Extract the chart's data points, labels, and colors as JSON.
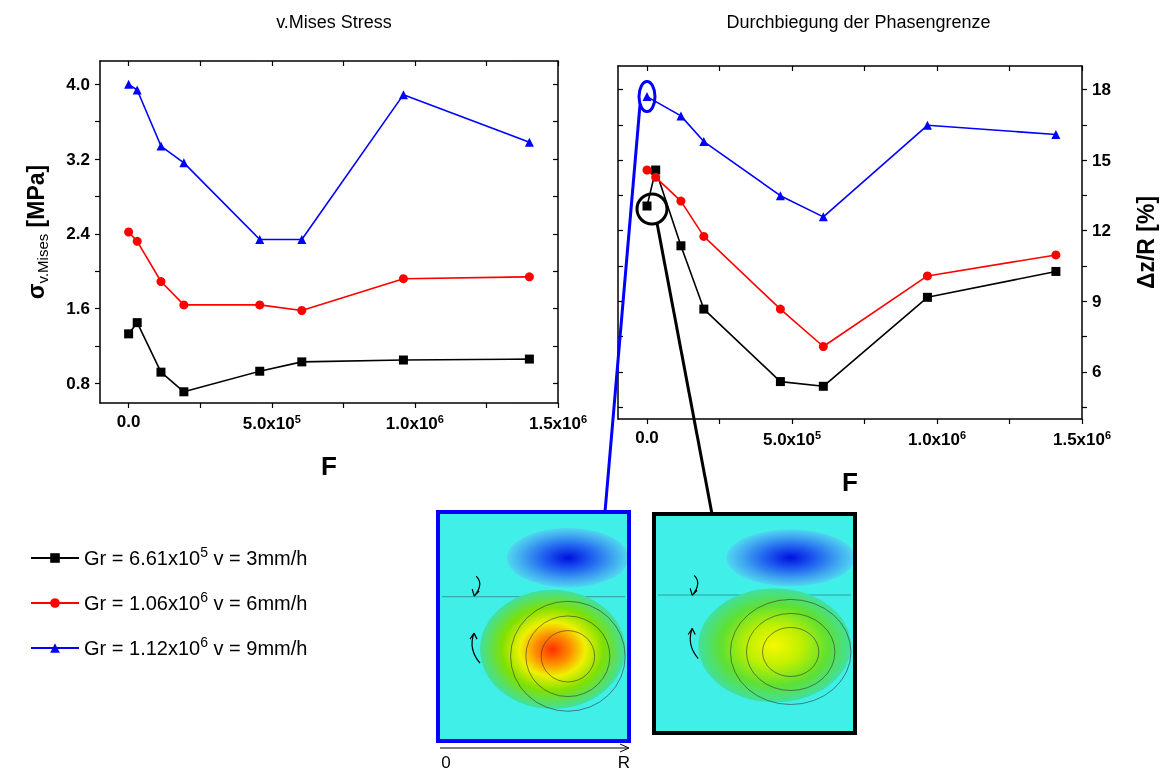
{
  "chart_data": [
    {
      "type": "line",
      "title": "v.Mises Stress",
      "xlabel": "F",
      "ylabel": "σ$_{v.Mises}$ [MPa]",
      "x": [
        0,
        30000,
        113000,
        193000,
        458000,
        605000,
        960000,
        1400000
      ],
      "series": [
        {
          "name": "Gr = 6.61x10$^{5}$ v = 3mm/h",
          "color": "#000000",
          "marker": "square",
          "values": [
            1.33,
            1.45,
            0.92,
            0.71,
            0.93,
            1.03,
            1.05,
            1.06
          ]
        },
        {
          "name": "Gr = 1.06x10$^{6}$ v = 6mm/h",
          "color": "#ff0000",
          "marker": "circle",
          "values": [
            2.42,
            2.32,
            1.89,
            1.64,
            1.64,
            1.58,
            1.92,
            1.94
          ]
        },
        {
          "name": "Gr = 1.12x10$^{6}$ v = 9mm/h",
          "color": "#0000ff",
          "marker": "triangle",
          "values": [
            4.0,
            3.94,
            3.34,
            3.16,
            2.34,
            2.34,
            3.89,
            3.38
          ]
        }
      ],
      "xlim": [
        -100000,
        1500000
      ],
      "xticks": [
        {
          "value": 0,
          "label": "0.0"
        },
        {
          "value": 250000,
          "label": null
        },
        {
          "value": 500000,
          "label": "5.0x10$^{5}$"
        },
        {
          "value": 750000,
          "label": null
        },
        {
          "value": 1000000,
          "label": "1.0x10$^{6}$"
        },
        {
          "value": 1250000,
          "label": null
        },
        {
          "value": 1500000,
          "label": "1.5x10$^{6}$"
        }
      ],
      "ylim": [
        0.59,
        4.25
      ],
      "yticks": [
        {
          "value": 0.8,
          "label": "0.8"
        },
        {
          "value": 1.2,
          "label": null
        },
        {
          "value": 1.6,
          "label": "1.6"
        },
        {
          "value": 2.0,
          "label": null
        },
        {
          "value": 2.4,
          "label": "2.4"
        },
        {
          "value": 2.8,
          "label": null
        },
        {
          "value": 3.2,
          "label": "3.2"
        },
        {
          "value": 3.6,
          "label": null
        },
        {
          "value": 4.0,
          "label": "4.0"
        }
      ],
      "grid": false,
      "legend": "bottom left",
      "line_style": "solid"
    },
    {
      "type": "line",
      "title": "Durchbiegung der Phasengrenze",
      "xlabel": "F",
      "y2label": "Δz/R [%]",
      "x": [
        0,
        30000,
        117000,
        196000,
        460000,
        608000,
        967000,
        1410000
      ],
      "series": [
        {
          "color": "#000000",
          "marker": "square",
          "axis": "y2",
          "values": [
            13.05,
            14.58,
            11.36,
            8.67,
            5.59,
            5.39,
            9.17,
            10.27
          ]
        },
        {
          "color": "#ff0000",
          "marker": "circle",
          "axis": "y2",
          "values": [
            14.58,
            14.27,
            13.26,
            11.76,
            8.67,
            7.08,
            10.08,
            10.97
          ]
        },
        {
          "color": "#0000ff",
          "marker": "triangle",
          "axis": "y2",
          "x": [
            0,
            117000,
            196000,
            460000,
            608000,
            967000,
            1410000
          ],
          "values": [
            17.7,
            16.88,
            15.79,
            13.49,
            12.59,
            16.48,
            16.09
          ]
        }
      ],
      "xlim": [
        -100000,
        1500000
      ],
      "xticks": [
        {
          "value": 0,
          "label": "0.0"
        },
        {
          "value": 250000,
          "label": null
        },
        {
          "value": 500000,
          "label": "5.0x10$^{5}$"
        },
        {
          "value": 750000,
          "label": null
        },
        {
          "value": 1000000,
          "label": "1.0x10$^{6}$"
        },
        {
          "value": 1250000,
          "label": null
        },
        {
          "value": 1500000,
          "label": "1.5x10$^{6}$"
        }
      ],
      "y2lim": [
        4,
        19
      ],
      "y2ticks": [
        {
          "value": 4.5,
          "label": null
        },
        6,
        {
          "value": 7.5,
          "label": null
        },
        9,
        {
          "value": 10.5,
          "label": null
        },
        12,
        {
          "value": 13.5,
          "label": null
        },
        15,
        {
          "value": 16.5,
          "label": null
        },
        18
      ],
      "annotations": [
        "0",
        "R"
      ],
      "grid": false,
      "legend": false,
      "line_style": "solid"
    }
  ]
}
